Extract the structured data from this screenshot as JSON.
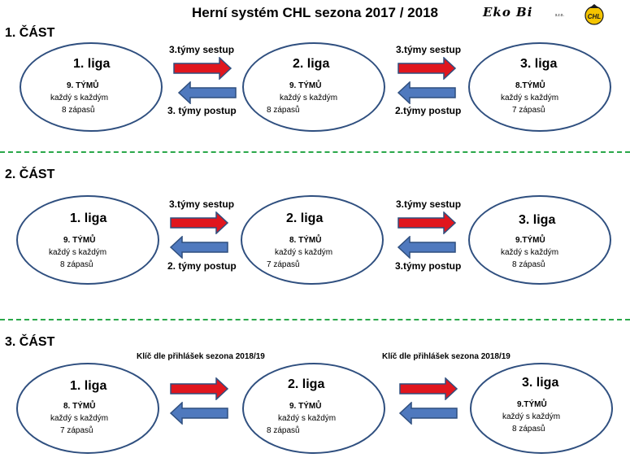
{
  "title": "Herní systém CHL sezona 2017 / 2018",
  "logos": {
    "eko": "Eko Bi",
    "eko_suffix": "s.r.o.",
    "chl": "CHL"
  },
  "parts": [
    {
      "label": "1. ČÁST",
      "leagues": [
        {
          "name": "1. liga",
          "teams": "9. TÝMŮ",
          "format": "každý s každým",
          "matches": "8 zápasů"
        },
        {
          "name": "2. liga",
          "teams": "9. TÝMŮ",
          "format": "každý s každým",
          "matches": "8 zápasů"
        },
        {
          "name": "3. liga",
          "teams": "8.TÝMŮ",
          "format": "každý s každým",
          "matches": "7 zápasů"
        }
      ],
      "links": [
        {
          "top": "3.týmy sestup",
          "bottom": "3. týmy postup"
        },
        {
          "top": "3.týmy sestup",
          "bottom": "2.týmy postup"
        }
      ]
    },
    {
      "label": "2. ČÁST",
      "leagues": [
        {
          "name": "1. liga",
          "teams": "9. TÝMŮ",
          "format": "každý s každým",
          "matches": "8 zápasů"
        },
        {
          "name": "2. liga",
          "teams": "8. TÝMŮ",
          "format": "každý s každým",
          "matches": "7 zápasů"
        },
        {
          "name": "3. liga",
          "teams": "9.TÝMŮ",
          "format": "každý s každým",
          "matches": "8 zápasů"
        }
      ],
      "links": [
        {
          "top": "3.týmy sestup",
          "bottom": "2. týmy postup"
        },
        {
          "top": "3.týmy sestup",
          "bottom": "3.týmy postup"
        }
      ]
    },
    {
      "label": "3. ČÁST",
      "leagues": [
        {
          "name": "1. liga",
          "teams": "8. TÝMŮ",
          "format": "každý s každým",
          "matches": "7 zápasů"
        },
        {
          "name": "2. liga",
          "teams": "9. TÝMŮ",
          "format": "každý s každým",
          "matches": "8 zápasů"
        },
        {
          "name": "3. liga",
          "teams": "9.TÝMŮ",
          "format": "každý s každým",
          "matches": "8 zápasů"
        }
      ],
      "keys": [
        "Klíč dle přihlášek sezona 2018/19",
        "Klíč dle přihlášek sezona 2018/19"
      ]
    }
  ],
  "colors": {
    "red_arrow": "#e0161e",
    "blue_arrow": "#4f79be",
    "ellipse_border": "#2f4f7f",
    "divider": "#2aa84a"
  }
}
